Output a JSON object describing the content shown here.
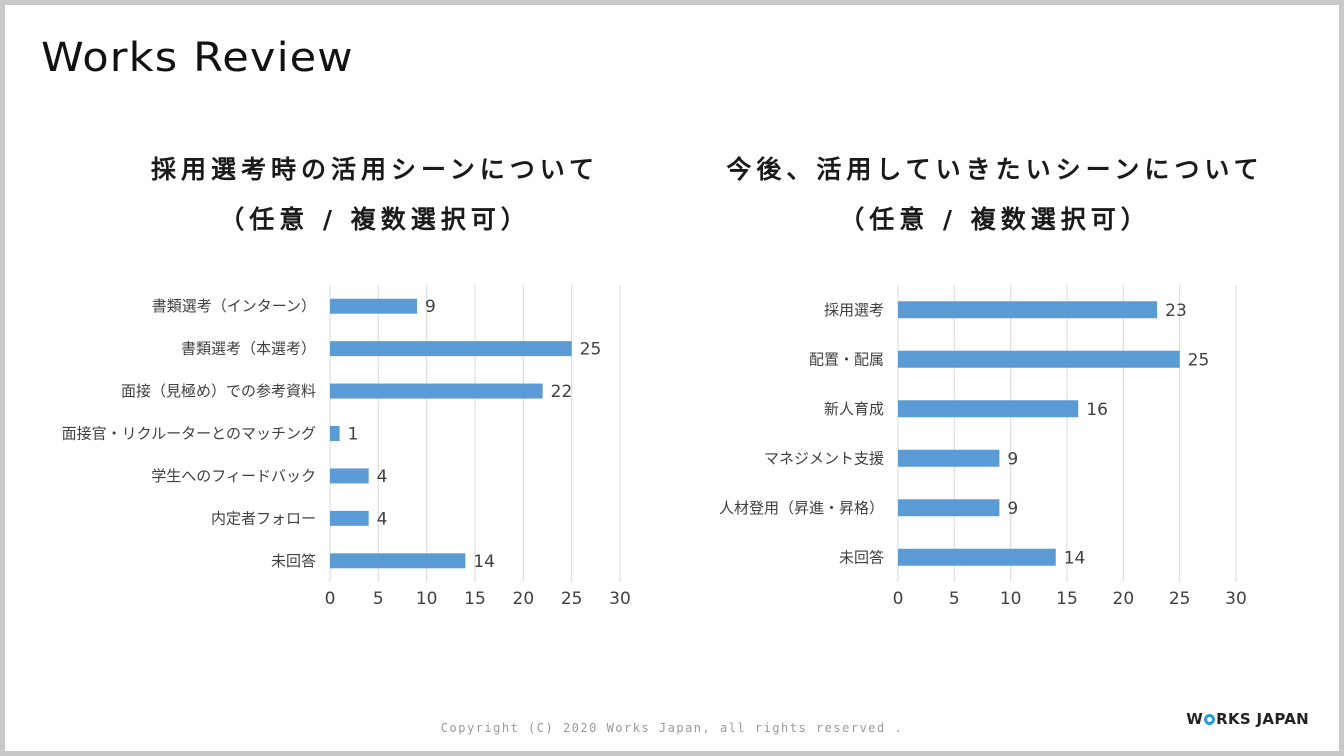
{
  "logo": "Works Review",
  "footer": "Copyright (C) 2020 Works Japan, all rights reserved .",
  "brand": {
    "before": "W",
    "after": "RKS JAPAN",
    "full": "WORKS JAPAN"
  },
  "colors": {
    "bar": "#5b9bd5",
    "grid": "#d9d9d9",
    "text": "#404040"
  },
  "chart_data": [
    {
      "type": "bar",
      "orientation": "horizontal",
      "title_line1": "採用選考時の活用シーンについて",
      "title_line2": "（任意 / 複数選択可）",
      "categories": [
        "書類選考（インターン）",
        "書類選考（本選考）",
        "面接（見極め）での参考資料",
        "面接官・リクルーターとのマッチング",
        "学生へのフィードバック",
        "内定者フォロー",
        "未回答"
      ],
      "values": [
        9,
        25,
        22,
        1,
        4,
        4,
        14
      ],
      "xlim": [
        0,
        30
      ],
      "xticks": [
        0,
        5,
        10,
        15,
        20,
        25,
        30
      ],
      "grid": true
    },
    {
      "type": "bar",
      "orientation": "horizontal",
      "title_line1": "今後、活用していきたいシーンについて",
      "title_line2": "（任意 / 複数選択可）",
      "categories": [
        "採用選考",
        "配置・配属",
        "新人育成",
        "マネジメント支援",
        "人材登用（昇進・昇格）",
        "未回答"
      ],
      "values": [
        23,
        25,
        16,
        9,
        9,
        14
      ],
      "xlim": [
        0,
        30
      ],
      "xticks": [
        0,
        5,
        10,
        15,
        20,
        25,
        30
      ],
      "grid": true
    }
  ]
}
